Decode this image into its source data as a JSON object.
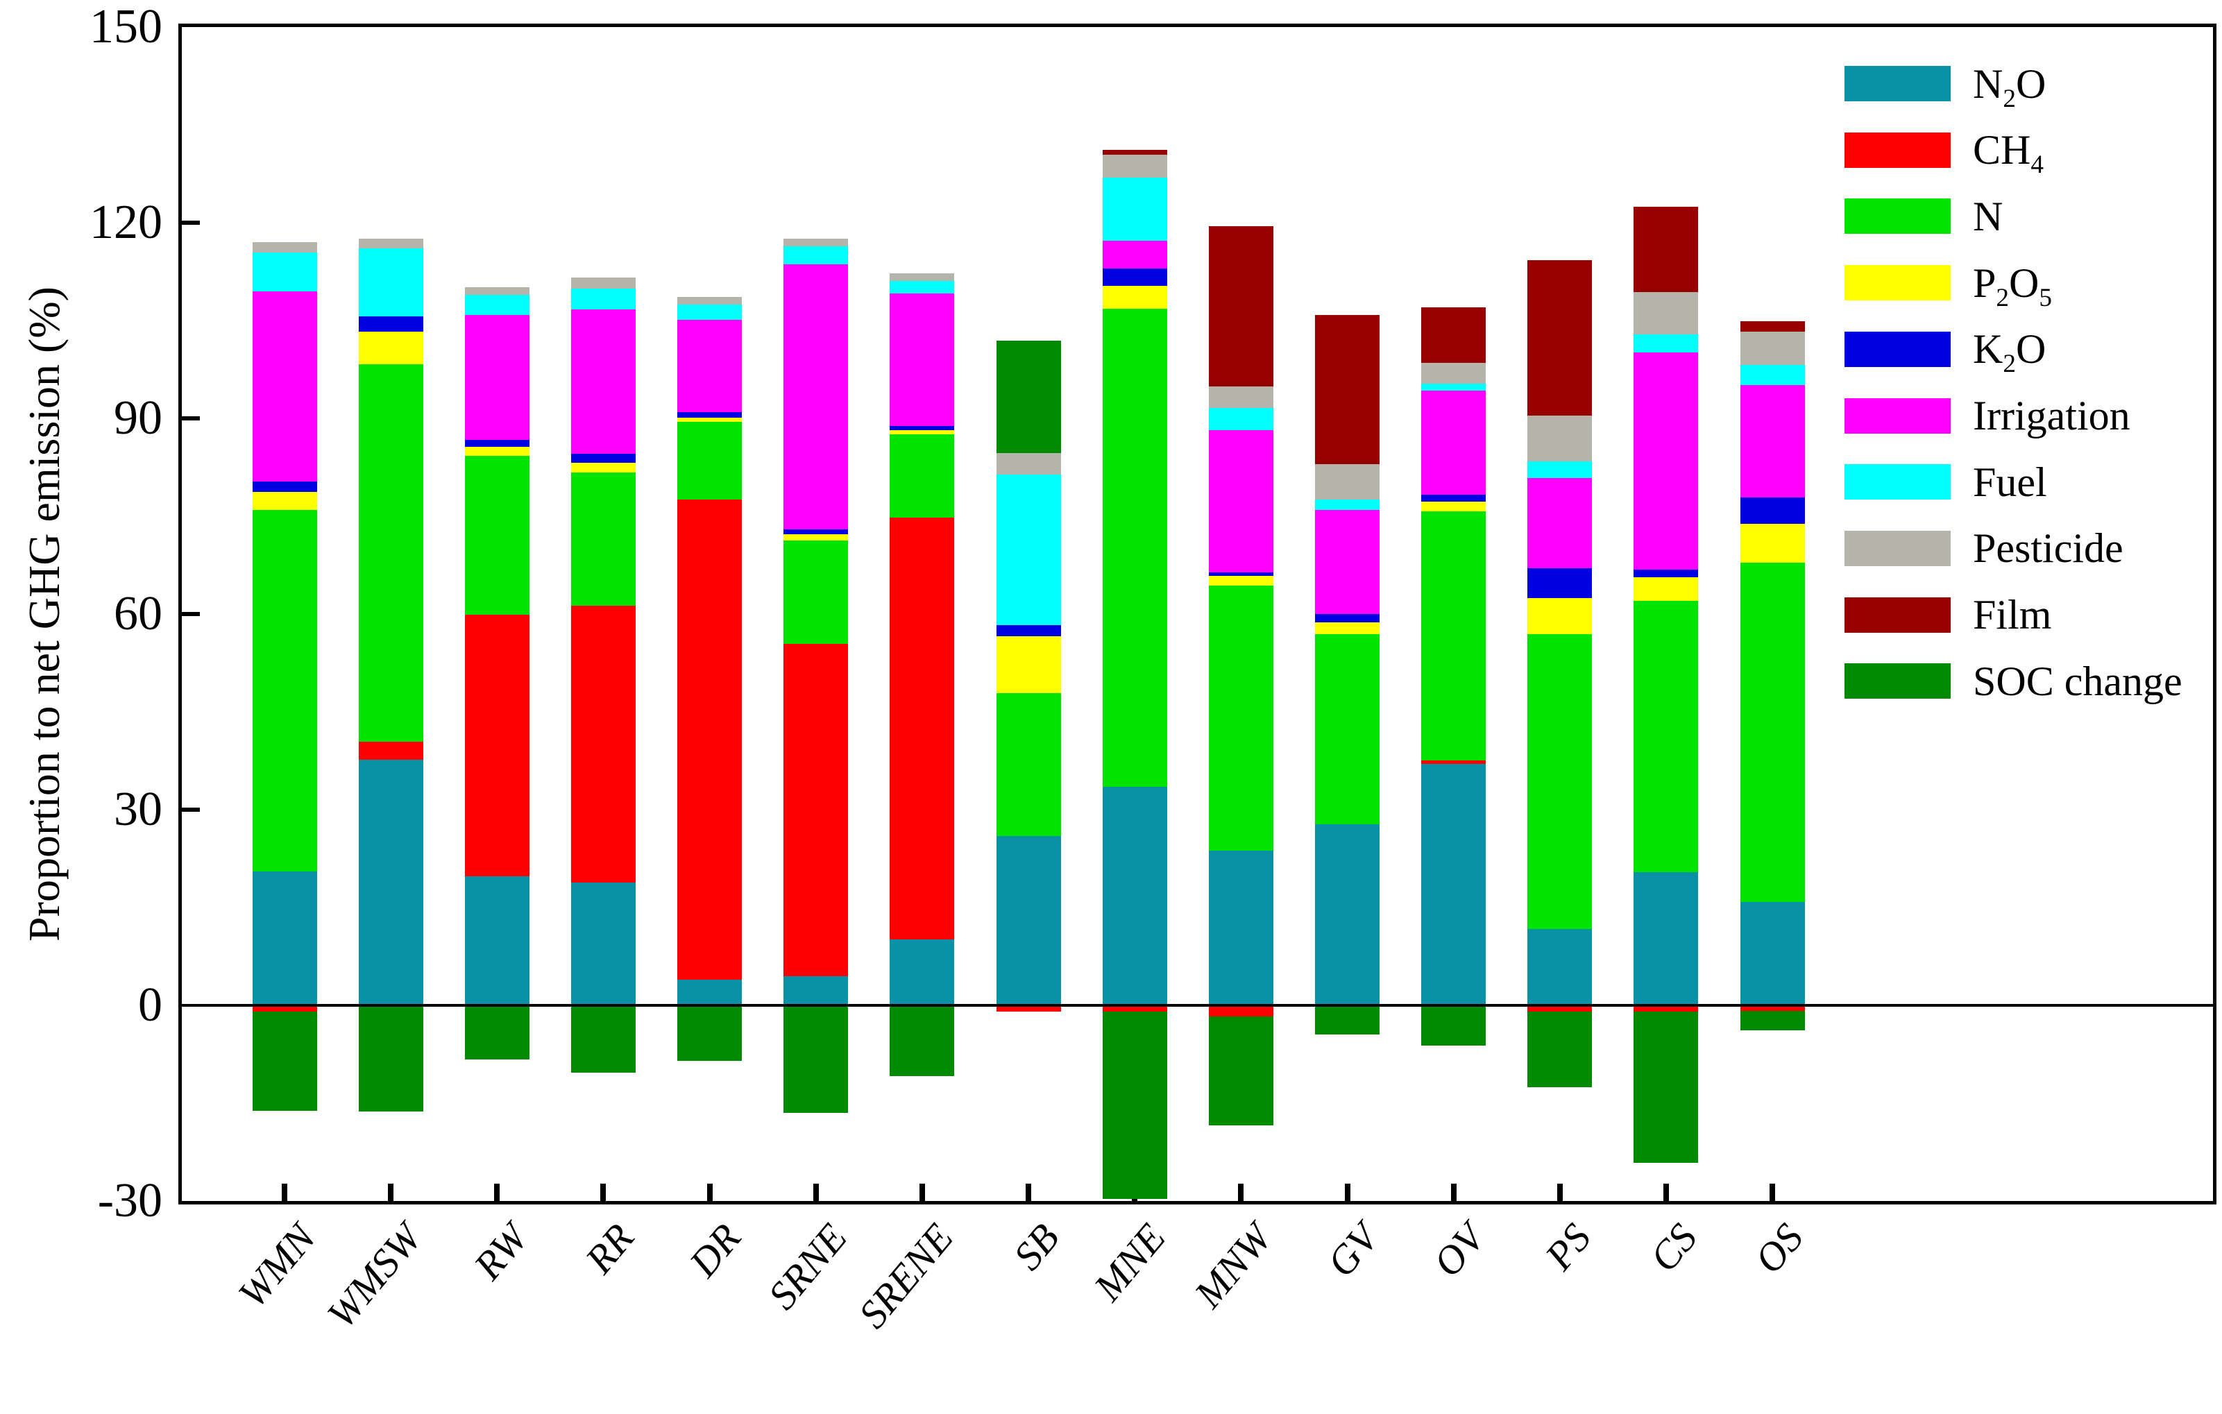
{
  "figure": {
    "background": "#ffffff",
    "y_axis": {
      "label": "Proportion to net GHG emission (%)",
      "tick_labels": [
        "150",
        "120",
        "90",
        "60",
        "30",
        "0",
        "-30"
      ],
      "tick_values": [
        150,
        120,
        90,
        60,
        30,
        0,
        -30
      ],
      "range": [
        -30,
        150
      ]
    },
    "x_axis": {
      "categories": [
        "WMN",
        "WMSW",
        "RW",
        "RR",
        "DR",
        "SRNE",
        "SRENE",
        "SB",
        "MNE",
        "MNW",
        "GV",
        "OV",
        "PS",
        "CS",
        "OS"
      ]
    }
  },
  "chart_data": {
    "type": "bar",
    "stacked": true,
    "title": "",
    "xlabel": "",
    "ylabel": "Proportion to net GHG emission (%)",
    "ylim": [
      -30,
      150
    ],
    "grid": false,
    "legend_position": "upper right inside plot",
    "categories": [
      "WMN",
      "WMSW",
      "RW",
      "RR",
      "DR",
      "SRNE",
      "SRENE",
      "SB",
      "MNE",
      "MNW",
      "GV",
      "OV",
      "PS",
      "CS",
      "OS"
    ],
    "series": [
      {
        "name": "N2O",
        "label": "N_2O",
        "color": "#0992A6",
        "values": [
          20.5,
          37.7,
          19.8,
          18.8,
          3.9,
          4.5,
          10.1,
          26.0,
          33.5,
          23.7,
          27.8,
          37.0,
          11.7,
          20.4,
          15.9
        ]
      },
      {
        "name": "CH4",
        "label": "CH_4",
        "color": "#FF0000",
        "values": [
          -1.0,
          2.7,
          40.1,
          42.5,
          73.7,
          50.9,
          64.7,
          -1.0,
          -1.0,
          -1.7,
          0,
          0.6,
          -1.0,
          -1.0,
          -0.8
        ]
      },
      {
        "name": "N",
        "label": "N",
        "color": "#00E400",
        "values": [
          55.5,
          57.9,
          24.4,
          20.4,
          11.9,
          15.9,
          12.8,
          21.9,
          73.3,
          40.7,
          29.1,
          38.1,
          45.2,
          41.6,
          52.0
        ]
      },
      {
        "name": "P2O5",
        "label": "P_2O_5",
        "color": "#FFFF00",
        "values": [
          2.7,
          5.0,
          1.3,
          1.5,
          0.6,
          0.9,
          0.6,
          8.7,
          3.5,
          1.5,
          1.8,
          1.5,
          5.5,
          3.6,
          5.9
        ]
      },
      {
        "name": "K2O",
        "label": "K_2O",
        "color": "#0000E0",
        "values": [
          1.6,
          2.3,
          1.1,
          1.4,
          0.9,
          0.8,
          0.6,
          1.7,
          2.7,
          0.5,
          1.3,
          1.1,
          4.6,
          1.2,
          4.1
        ]
      },
      {
        "name": "Irrigation",
        "label": "Irrigation",
        "color": "#FF00FF",
        "values": [
          29.2,
          0,
          19.1,
          22.1,
          14.1,
          40.6,
          20.3,
          0,
          4.2,
          21.8,
          16.0,
          16.0,
          13.8,
          33.3,
          17.2
        ]
      },
      {
        "name": "Fuel",
        "label": "Fuel",
        "color": "#00FFFF",
        "values": [
          5.9,
          10.5,
          3.1,
          3.2,
          2.3,
          2.8,
          2.0,
          23.1,
          9.7,
          3.4,
          1.6,
          1.0,
          2.6,
          2.8,
          3.1
        ]
      },
      {
        "name": "Pesticide",
        "label": "Pesticide",
        "color": "#B4B4AA",
        "values": [
          1.6,
          1.5,
          1.2,
          1.7,
          1.2,
          1.2,
          1.1,
          3.3,
          3.5,
          3.3,
          5.4,
          3.2,
          7.0,
          6.5,
          5.1
        ]
      },
      {
        "name": "Film",
        "label": "Film",
        "color": "#980000",
        "values": [
          0,
          0,
          0,
          0,
          0,
          0,
          0,
          0,
          0.8,
          24.6,
          22.8,
          8.5,
          23.9,
          13.0,
          1.6
        ]
      },
      {
        "name": "SOC change",
        "label": "SOC change",
        "color": "#008A00",
        "values": [
          -15.2,
          -16.3,
          -8.3,
          -10.3,
          -8.5,
          -16.5,
          -10.9,
          17.2,
          -28.7,
          -16.7,
          -4.5,
          -6.2,
          -11.6,
          -23.2,
          -3.0
        ]
      }
    ]
  }
}
